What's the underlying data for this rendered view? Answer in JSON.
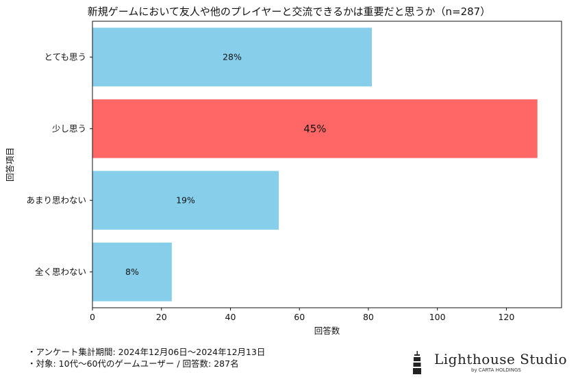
{
  "chart_data": {
    "type": "bar",
    "orientation": "horizontal",
    "title": "新規ゲームにおいて友人や他のプレイヤーと交流できるかは重要だと思うか（n=287）",
    "xlabel": "回答数",
    "ylabel": "回答項目",
    "categories": [
      "とても思う",
      "少し思う",
      "あまり思わない",
      "全く思わない"
    ],
    "values": [
      81,
      129,
      54,
      23
    ],
    "percent_labels": [
      "28%",
      "45%",
      "19%",
      "8%"
    ],
    "colors": [
      "#87ceeb",
      "#ff6666",
      "#87ceeb",
      "#87ceeb"
    ],
    "highlight_index": 1,
    "xlim": [
      0,
      136
    ],
    "xticks": [
      0,
      20,
      40,
      60,
      80,
      100,
      120
    ],
    "grid": false
  },
  "notes": [
    "・アンケート集計期間: 2024年12月06日〜2024年12月13日",
    "・対象: 10代〜60代のゲームユーザー / 回答数: 287名"
  ],
  "logo": {
    "name": "Lighthouse Studio",
    "sub": "by CARTA HOLDINGS"
  }
}
